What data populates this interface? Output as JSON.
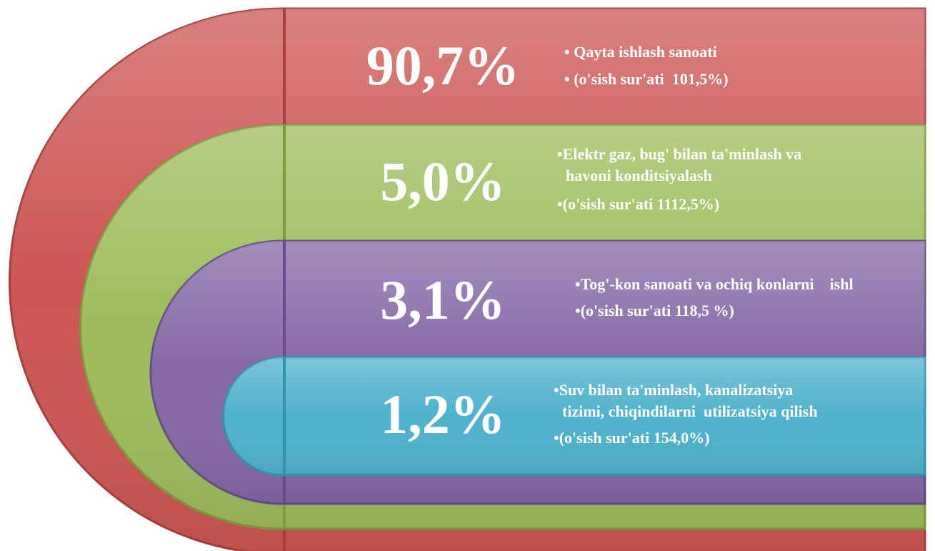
{
  "items": [
    {
      "percent": "90,7%",
      "lines": [
        "• Qayta ishlash sanoati",
        "• (o'sish sur'ati  101,5%)"
      ]
    },
    {
      "percent": "5,0%",
      "lines": [
        "•Elektr gaz, bug' bilan ta'minlash va",
        "havoni konditsiyalash",
        "•(o'sish sur'ati 1112,5%)"
      ]
    },
    {
      "percent": "3,1%",
      "lines": [
        "•Tog'-kon sanoati va ochiq konlarni    ishl",
        "•(o'sish sur'ati 118,5 %)"
      ]
    },
    {
      "percent": "1,2%",
      "lines": [
        "•Suv bilan ta'minlash, kanalizatsiya",
        "tizimi, chiqindilarni  utilizatsiya qilish",
        "•(o'sish sur'ati 154,0%)"
      ]
    }
  ]
}
